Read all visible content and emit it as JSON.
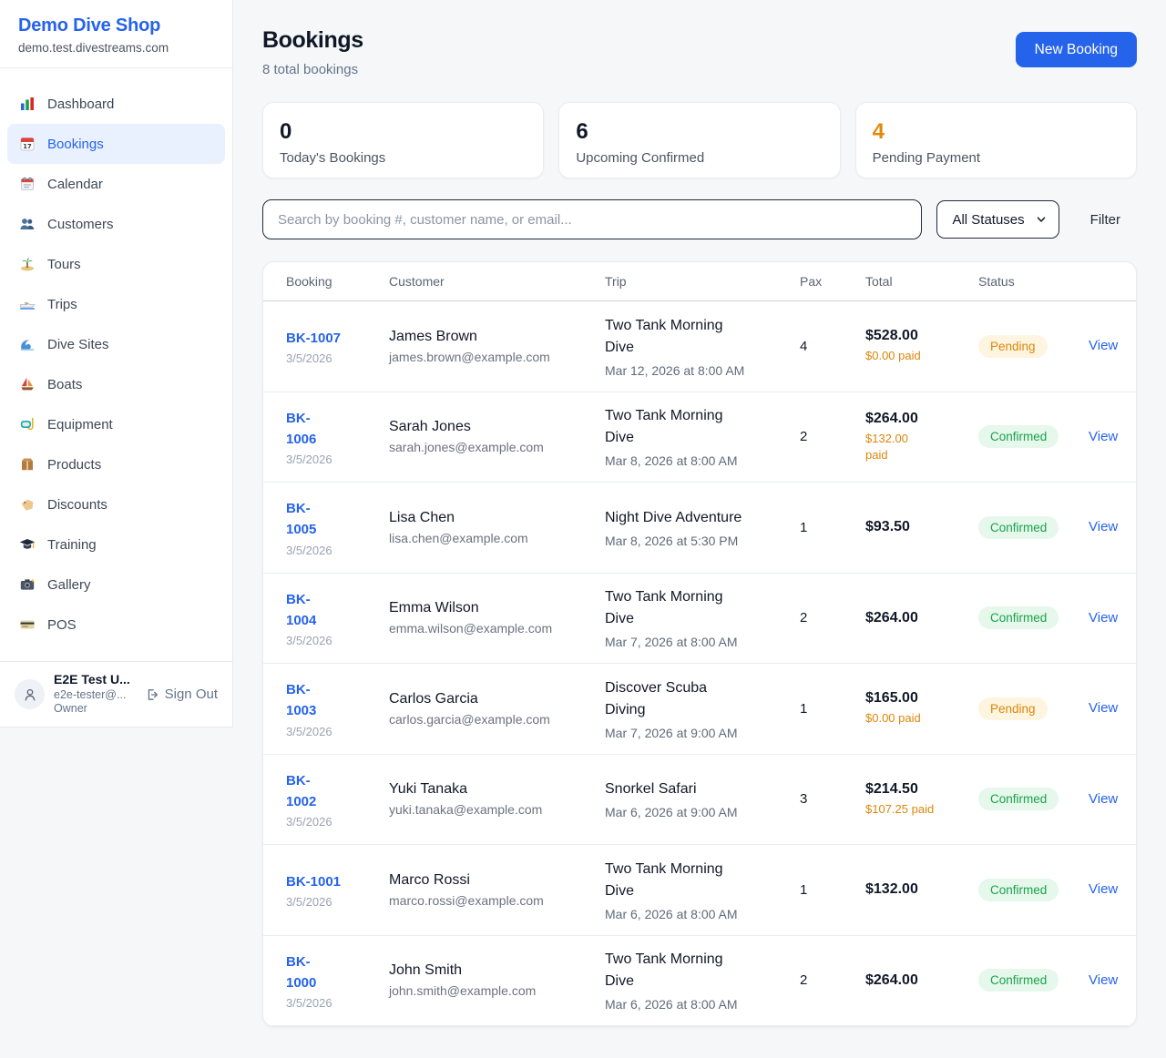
{
  "sidebar": {
    "brand": {
      "name": "Demo Dive Shop",
      "domain": "demo.test.divestreams.com"
    },
    "items": [
      {
        "label": "Dashboard",
        "icon": "bar-chart-icon",
        "active": false
      },
      {
        "label": "Bookings",
        "icon": "calendar-17-icon",
        "active": true
      },
      {
        "label": "Calendar",
        "icon": "spiral-calendar-icon",
        "active": false
      },
      {
        "label": "Customers",
        "icon": "people-icon",
        "active": false
      },
      {
        "label": "Tours",
        "icon": "island-icon",
        "active": false
      },
      {
        "label": "Trips",
        "icon": "speedboat-icon",
        "active": false
      },
      {
        "label": "Dive Sites",
        "icon": "wave-icon",
        "active": false
      },
      {
        "label": "Boats",
        "icon": "sailboat-icon",
        "active": false
      },
      {
        "label": "Equipment",
        "icon": "diving-mask-icon",
        "active": false
      },
      {
        "label": "Products",
        "icon": "package-icon",
        "active": false
      },
      {
        "label": "Discounts",
        "icon": "tag-icon",
        "active": false
      },
      {
        "label": "Training",
        "icon": "graduation-cap-icon",
        "active": false
      },
      {
        "label": "Gallery",
        "icon": "camera-icon",
        "active": false
      },
      {
        "label": "POS",
        "icon": "credit-card-icon",
        "active": false
      }
    ],
    "user": {
      "name": "E2E Test U...",
      "email": "e2e-tester@...",
      "role": "Owner",
      "sign_out_label": "Sign Out"
    }
  },
  "header": {
    "title": "Bookings",
    "subtitle": "8 total bookings",
    "new_booking_label": "New Booking"
  },
  "stats": [
    {
      "value": "0",
      "label": "Today's Bookings"
    },
    {
      "value": "6",
      "label": "Upcoming Confirmed"
    },
    {
      "value": "4",
      "label": "Pending Payment"
    }
  ],
  "filters": {
    "search_placeholder": "Search by booking #, customer name, or email...",
    "status_select_value": "All Statuses",
    "filter_label": "Filter"
  },
  "table": {
    "columns": [
      "Booking",
      "Customer",
      "Trip",
      "Pax",
      "Total",
      "Status"
    ],
    "rows": [
      {
        "booking_id": "BK-1007",
        "booking_date": "3/5/2026",
        "customer_name": "James Brown",
        "customer_email": "james.brown@example.com",
        "trip_name": "Two Tank Morning\nDive",
        "trip_datetime": "Mar 12, 2026 at 8:00 AM",
        "pax": "4",
        "total": "$528.00",
        "paid": "$0.00 paid",
        "status": "Pending",
        "action": "View"
      },
      {
        "booking_id": "BK-\n1006",
        "booking_date": "3/5/2026",
        "customer_name": "Sarah Jones",
        "customer_email": "sarah.jones@example.com",
        "trip_name": "Two Tank Morning\nDive",
        "trip_datetime": "Mar 8, 2026 at 8:00 AM",
        "pax": "2",
        "total": "$264.00",
        "paid": "$132.00\npaid",
        "status": "Confirmed",
        "action": "View"
      },
      {
        "booking_id": "BK-\n1005",
        "booking_date": "3/5/2026",
        "customer_name": "Lisa Chen",
        "customer_email": "lisa.chen@example.com",
        "trip_name": "Night Dive Adventure",
        "trip_datetime": "Mar 8, 2026 at 5:30 PM",
        "pax": "1",
        "total": "$93.50",
        "paid": "",
        "status": "Confirmed",
        "action": "View"
      },
      {
        "booking_id": "BK-\n1004",
        "booking_date": "3/5/2026",
        "customer_name": "Emma Wilson",
        "customer_email": "emma.wilson@example.com",
        "trip_name": "Two Tank Morning\nDive",
        "trip_datetime": "Mar 7, 2026 at 8:00 AM",
        "pax": "2",
        "total": "$264.00",
        "paid": "",
        "status": "Confirmed",
        "action": "View"
      },
      {
        "booking_id": "BK-\n1003",
        "booking_date": "3/5/2026",
        "customer_name": "Carlos Garcia",
        "customer_email": "carlos.garcia@example.com",
        "trip_name": "Discover Scuba\nDiving",
        "trip_datetime": "Mar 7, 2026 at 9:00 AM",
        "pax": "1",
        "total": "$165.00",
        "paid": "$0.00 paid",
        "status": "Pending",
        "action": "View"
      },
      {
        "booking_id": "BK-\n1002",
        "booking_date": "3/5/2026",
        "customer_name": "Yuki Tanaka",
        "customer_email": "yuki.tanaka@example.com",
        "trip_name": "Snorkel Safari",
        "trip_datetime": "Mar 6, 2026 at 9:00 AM",
        "pax": "3",
        "total": "$214.50",
        "paid": "$107.25 paid",
        "status": "Confirmed",
        "action": "View"
      },
      {
        "booking_id": "BK-1001",
        "booking_date": "3/5/2026",
        "customer_name": "Marco Rossi",
        "customer_email": "marco.rossi@example.com",
        "trip_name": "Two Tank Morning\nDive",
        "trip_datetime": "Mar 6, 2026 at 8:00 AM",
        "pax": "1",
        "total": "$132.00",
        "paid": "",
        "status": "Confirmed",
        "action": "View"
      },
      {
        "booking_id": "BK-\n1000",
        "booking_date": "3/5/2026",
        "customer_name": "John Smith",
        "customer_email": "john.smith@example.com",
        "trip_name": "Two Tank Morning\nDive",
        "trip_datetime": "Mar 6, 2026 at 8:00 AM",
        "pax": "2",
        "total": "$264.00",
        "paid": "",
        "status": "Confirmed",
        "action": "View"
      }
    ]
  },
  "colors": {
    "accent_blue": "#2563eb",
    "pending_text": "#dd860a",
    "pending_bg": "#fdf5e0",
    "confirmed_text": "#17a34a",
    "confirmed_bg": "#e6f7ec",
    "page_bg": "#f6f7f9"
  }
}
